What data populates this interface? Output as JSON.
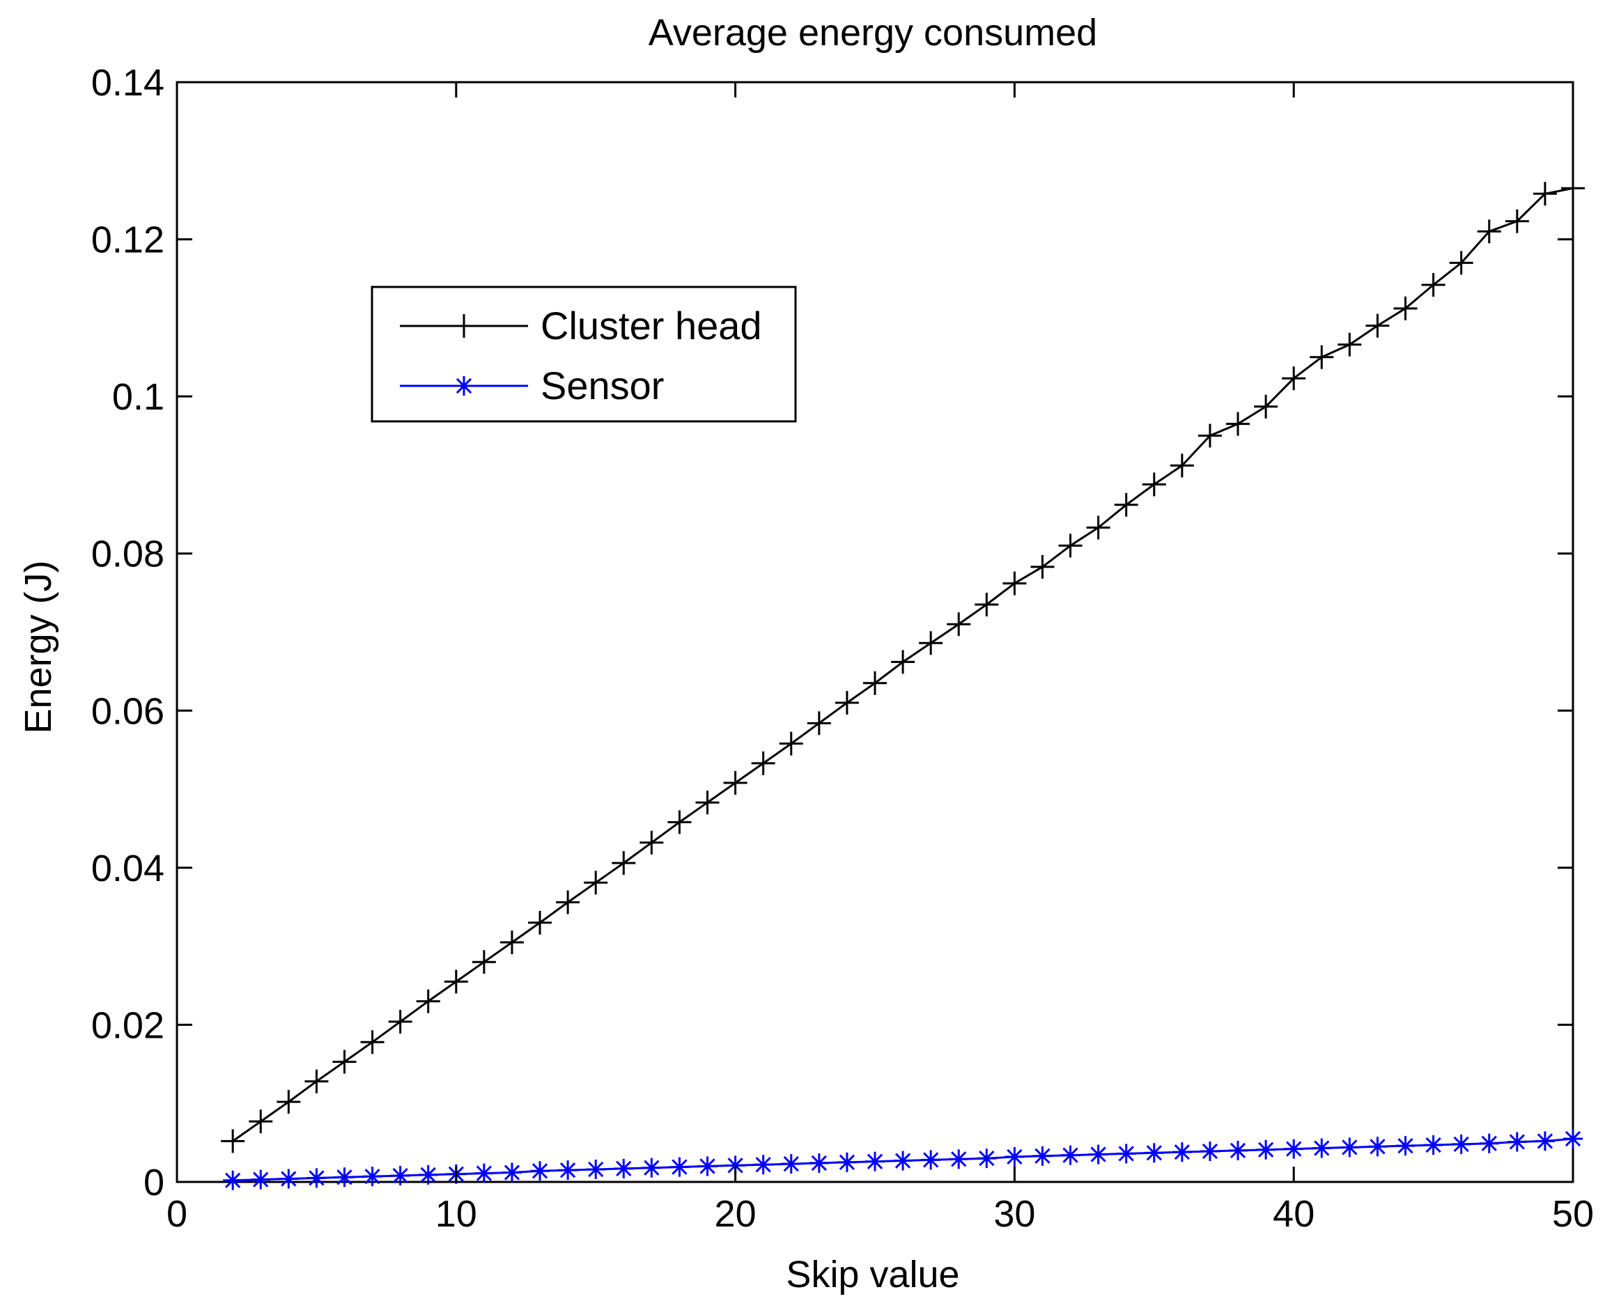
{
  "chart_data": {
    "type": "line",
    "title": "Average energy consumed",
    "xlabel": "Skip value",
    "ylabel": "Energy (J)",
    "xlim": [
      0,
      50
    ],
    "ylim": [
      0,
      0.14
    ],
    "xticks": [
      0,
      10,
      20,
      30,
      40,
      50
    ],
    "yticks": [
      0,
      0.02,
      0.04,
      0.06,
      0.08,
      0.1,
      0.12,
      0.14
    ],
    "xtick_labels": [
      "0",
      "10",
      "20",
      "30",
      "40",
      "50"
    ],
    "ytick_labels": [
      "0",
      "0.02",
      "0.04",
      "0.06",
      "0.08",
      "0.1",
      "0.12",
      "0.14"
    ],
    "grid": false,
    "legend_position": "upper-left",
    "x": [
      2,
      3,
      4,
      5,
      6,
      7,
      8,
      9,
      10,
      11,
      12,
      13,
      14,
      15,
      16,
      17,
      18,
      19,
      20,
      21,
      22,
      23,
      24,
      25,
      26,
      27,
      28,
      29,
      30,
      31,
      32,
      33,
      34,
      35,
      36,
      37,
      38,
      39,
      40,
      41,
      42,
      43,
      44,
      45,
      46,
      47,
      48,
      49,
      50
    ],
    "series": [
      {
        "name": "Cluster head",
        "color": "#000000",
        "marker": "plus",
        "values": [
          0.0052,
          0.0077,
          0.0102,
          0.0128,
          0.0153,
          0.0178,
          0.0204,
          0.023,
          0.0255,
          0.028,
          0.0305,
          0.033,
          0.0356,
          0.0381,
          0.0406,
          0.0432,
          0.0458,
          0.0483,
          0.0508,
          0.0533,
          0.0558,
          0.0584,
          0.061,
          0.0635,
          0.0662,
          0.0686,
          0.071,
          0.0735,
          0.0762,
          0.0783,
          0.081,
          0.0833,
          0.0862,
          0.0888,
          0.0912,
          0.095,
          0.0965,
          0.0987,
          0.1023,
          0.105,
          0.1066,
          0.109,
          0.1112,
          0.1142,
          0.117,
          0.121,
          0.1223,
          0.1258,
          0.1265
        ]
      },
      {
        "name": "Sensor",
        "color": "#0000ff",
        "marker": "asterisk",
        "values": [
          0.0002,
          0.0003,
          0.0004,
          0.0005,
          0.0006,
          0.0007,
          0.0008,
          0.0009,
          0.001,
          0.0011,
          0.0012,
          0.0014,
          0.0015,
          0.0016,
          0.0017,
          0.0018,
          0.0019,
          0.002,
          0.0021,
          0.0022,
          0.0023,
          0.0024,
          0.0025,
          0.0026,
          0.0027,
          0.0028,
          0.0029,
          0.003,
          0.0032,
          0.0033,
          0.0034,
          0.0035,
          0.0036,
          0.0037,
          0.0038,
          0.0039,
          0.004,
          0.0041,
          0.0042,
          0.0043,
          0.0044,
          0.0045,
          0.0046,
          0.0047,
          0.0048,
          0.0049,
          0.0051,
          0.0052,
          0.0055
        ]
      }
    ]
  }
}
